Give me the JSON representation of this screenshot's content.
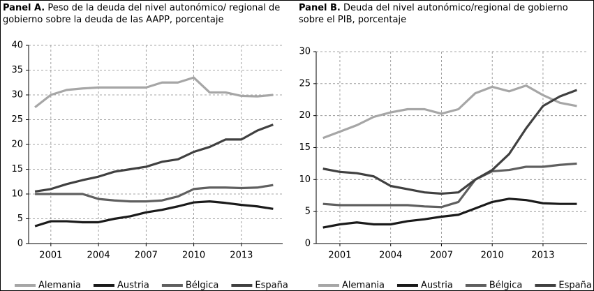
{
  "chart_data": [
    {
      "type": "line",
      "panel_label": "Panel A.",
      "title": "Peso de la deuda del nivel autonómico/ regional de gobierno sobre la deuda de las AAPP, porcentaje",
      "x": [
        2000,
        2001,
        2002,
        2003,
        2004,
        2005,
        2006,
        2007,
        2008,
        2009,
        2010,
        2011,
        2012,
        2013,
        2014,
        2015
      ],
      "xlim": [
        1999.6,
        2015.6
      ],
      "xticks": [
        2001,
        2004,
        2007,
        2010,
        2013
      ],
      "ylim": [
        0,
        40
      ],
      "yticks": [
        0,
        5,
        10,
        15,
        20,
        25,
        30,
        35,
        40
      ],
      "grid": true,
      "series": [
        {
          "name": "Alemania",
          "color": "#a6a6a6",
          "values": [
            27.5,
            30,
            31,
            31.3,
            31.5,
            31.5,
            31.5,
            31.5,
            32.5,
            32.5,
            33.5,
            30.5,
            30.5,
            29.8,
            29.7,
            30
          ]
        },
        {
          "name": "Austria",
          "color": "#1a1a1a",
          "values": [
            3.5,
            4.5,
            4.5,
            4.3,
            4.3,
            5,
            5.5,
            6.3,
            6.8,
            7.5,
            8.3,
            8.5,
            8.2,
            7.8,
            7.5,
            7
          ]
        },
        {
          "name": "Bélgica",
          "color": "#5f5f5f",
          "values": [
            10,
            10,
            10,
            10,
            9,
            8.7,
            8.5,
            8.5,
            8.7,
            9.5,
            11,
            11.3,
            11.3,
            11.2,
            11.3,
            11.8
          ]
        },
        {
          "name": "España",
          "color": "#404040",
          "values": [
            10.5,
            11,
            12,
            12.8,
            13.5,
            14.5,
            15,
            15.5,
            16.5,
            17,
            18.5,
            19.5,
            21,
            21,
            22.8,
            24
          ]
        }
      ]
    },
    {
      "type": "line",
      "panel_label": "Panel B.",
      "title": "Deuda del nivel autonómico/regional de gobierno sobre el PIB, porcentaje",
      "x": [
        2000,
        2001,
        2002,
        2003,
        2004,
        2005,
        2006,
        2007,
        2008,
        2009,
        2010,
        2011,
        2012,
        2013,
        2014,
        2015
      ],
      "xlim": [
        1999.6,
        2015.6
      ],
      "xticks": [
        2001,
        2004,
        2007,
        2010,
        2013
      ],
      "ylim": [
        0,
        30
      ],
      "yticks": [
        0,
        5,
        10,
        15,
        20,
        25,
        30
      ],
      "grid": true,
      "series": [
        {
          "name": "Alemania",
          "color": "#a6a6a6",
          "values": [
            16.5,
            17.5,
            18.5,
            19.8,
            20.5,
            21,
            21,
            20.3,
            21,
            23.5,
            24.5,
            23.8,
            24.7,
            23.2,
            22,
            21.5
          ]
        },
        {
          "name": "Austria",
          "color": "#1a1a1a",
          "values": [
            2.5,
            3,
            3.3,
            3,
            3,
            3.5,
            3.8,
            4.2,
            4.5,
            5.5,
            6.5,
            7,
            6.8,
            6.3,
            6.2,
            6.2
          ]
        },
        {
          "name": "Bélgica",
          "color": "#5f5f5f",
          "values": [
            6.2,
            6,
            6,
            6,
            6,
            6,
            5.8,
            5.7,
            6.5,
            10,
            11.3,
            11.5,
            12,
            12,
            12.3,
            12.5
          ]
        },
        {
          "name": "España",
          "color": "#404040",
          "values": [
            11.7,
            11.2,
            11,
            10.5,
            9,
            8.5,
            8,
            7.8,
            8,
            10,
            11.5,
            14,
            18,
            21.5,
            23,
            24
          ]
        }
      ]
    }
  ]
}
